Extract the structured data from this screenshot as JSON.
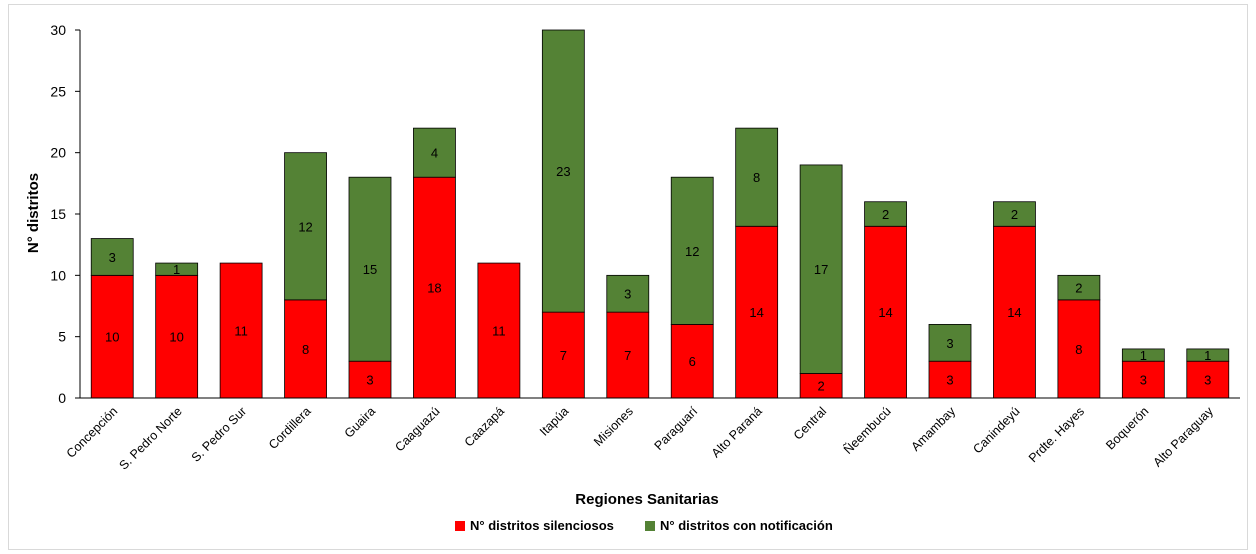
{
  "chart_data": {
    "type": "bar",
    "stacked": true,
    "xlabel": "Regiones Sanitarias",
    "ylabel": "N° distritos",
    "ylim": [
      0,
      30
    ],
    "yticks": [
      0,
      5,
      10,
      15,
      20,
      25,
      30
    ],
    "grid": false,
    "legend_position": "bottom",
    "categories": [
      "Concepción",
      "S. Pedro Norte",
      "S. Pedro Sur",
      "Cordillera",
      "Guaira",
      "Caaguazú",
      "Caazapá",
      "Itapúa",
      "Misiones",
      "Paraguarí",
      "Alto Paraná",
      "Central",
      "Ñeembucú",
      "Amambay",
      "Canindeyú",
      "Prdte. Hayes",
      "Boquerón",
      "Alto Paraguay"
    ],
    "series": [
      {
        "name": "N° distritos silenciosos",
        "color": "#ff0000",
        "values": [
          10,
          10,
          11,
          8,
          3,
          18,
          11,
          7,
          7,
          6,
          14,
          2,
          14,
          3,
          14,
          8,
          3,
          3
        ]
      },
      {
        "name": "N° distritos con notificación",
        "color": "#548235",
        "values": [
          3,
          1,
          0,
          12,
          15,
          4,
          0,
          23,
          3,
          12,
          8,
          17,
          2,
          3,
          2,
          2,
          1,
          1
        ]
      }
    ]
  }
}
